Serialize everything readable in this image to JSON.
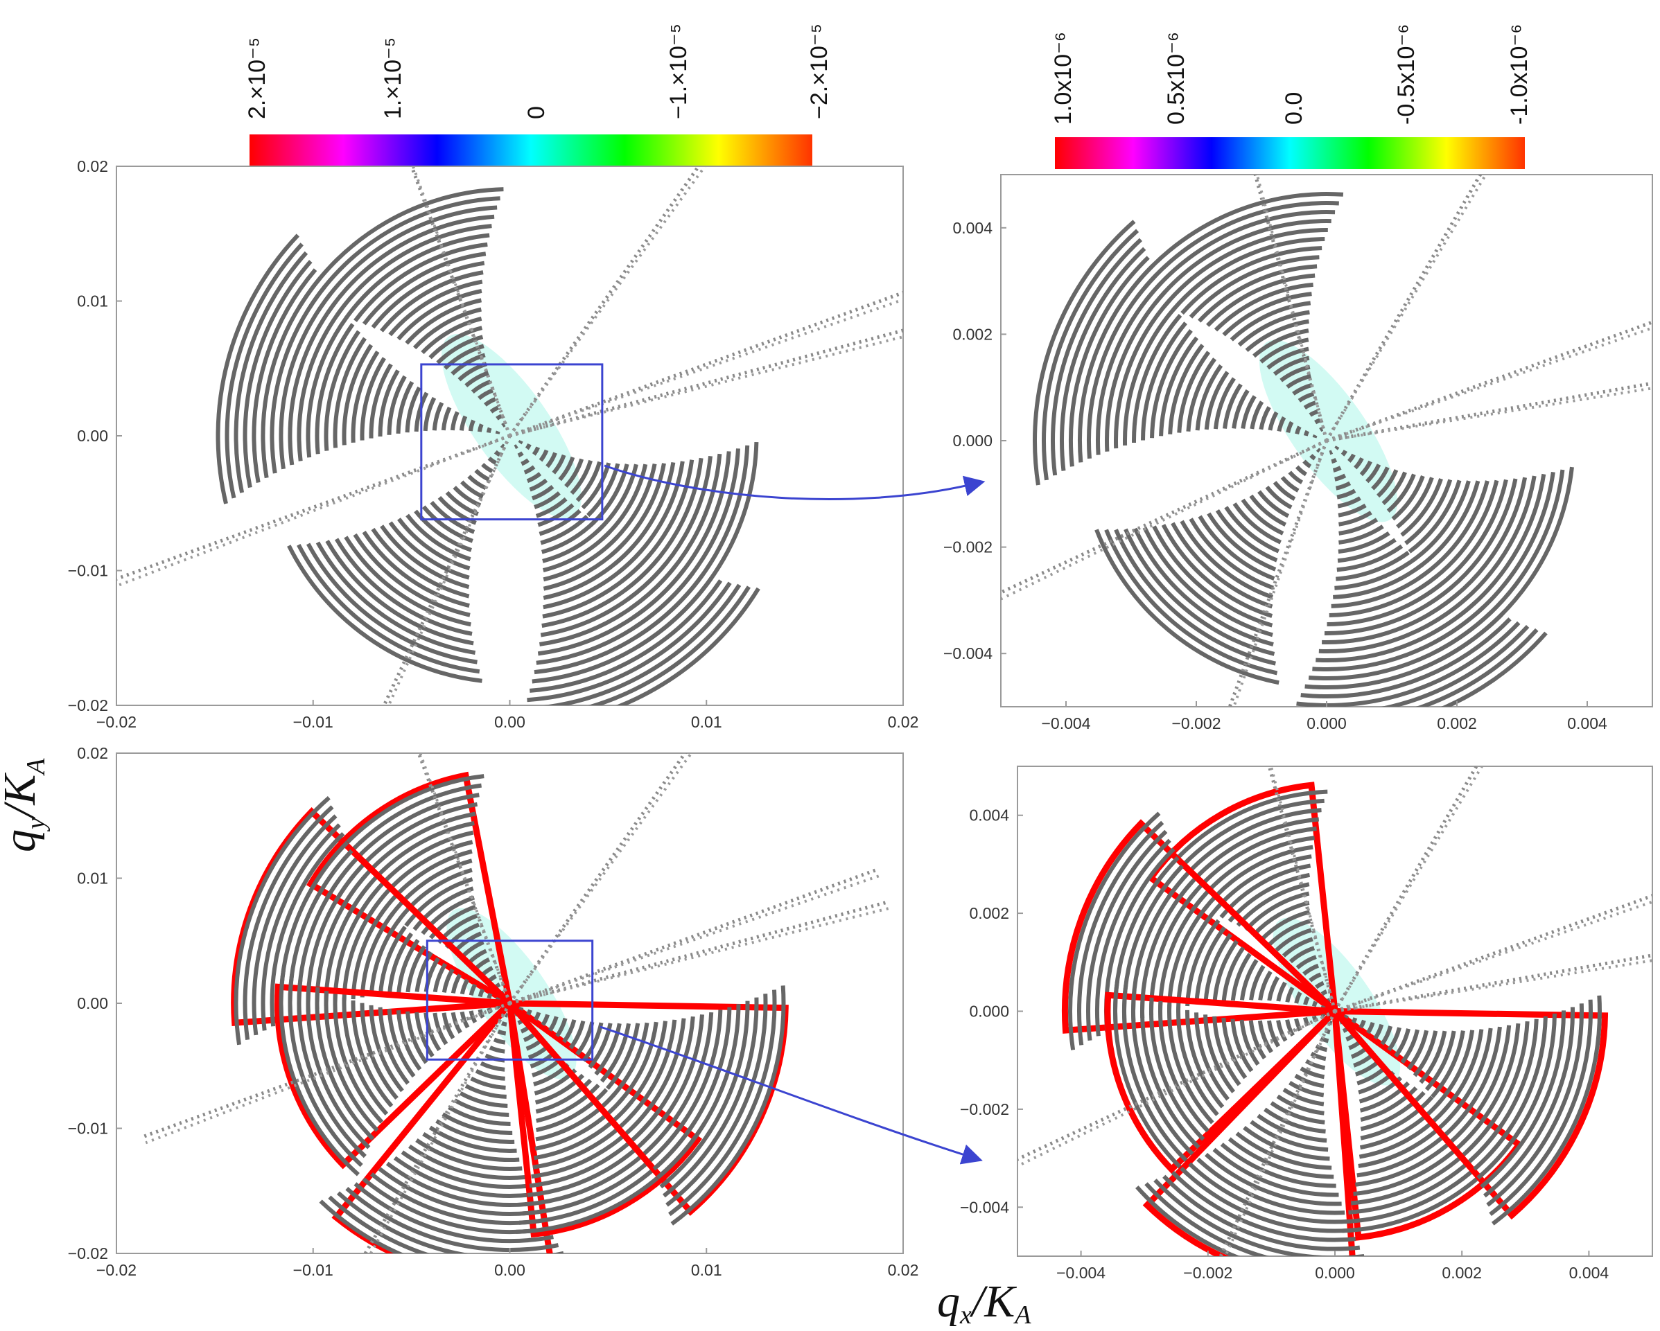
{
  "figure": {
    "xlabel": "q",
    "xlabel_sub": "x",
    "xlabel_den": "/K",
    "xlabel_den_sub": "A",
    "ylabel": "q",
    "ylabel_sub": "y",
    "ylabel_den": "/K",
    "ylabel_den_sub": "A"
  },
  "colorbars": [
    {
      "labels": [
        "2.×10⁻⁵",
        "1.×10⁻⁵",
        "0",
        "−1.×10⁻⁵",
        "−2.×10⁻⁵"
      ],
      "values": [
        2e-05,
        1e-05,
        0,
        -1e-05,
        -2e-05
      ],
      "colors": [
        "#ff0000",
        "#ff00ff",
        "#0000ff",
        "#00ffff",
        "#00ff00",
        "#ffff00",
        "#ff3300"
      ]
    },
    {
      "labels": [
        "1.0x10⁻⁶",
        "0.5x10⁻⁶",
        "0.0",
        "-0.5x10⁻⁶",
        "-1.0x10⁻⁶"
      ],
      "values": [
        1e-06,
        5e-07,
        0,
        -5e-07,
        -1e-06
      ],
      "colors": [
        "#ff0000",
        "#ff00ff",
        "#0000ff",
        "#00ffff",
        "#00ff00",
        "#ffff00",
        "#ff3300"
      ]
    }
  ],
  "chart_data": [
    {
      "id": "top-left",
      "type": "heatmap",
      "title": "",
      "xlim": [
        -0.02,
        0.02
      ],
      "ylim": [
        -0.02,
        0.02
      ],
      "xticks": [
        -0.02,
        -0.01,
        0.0,
        0.01,
        0.02
      ],
      "yticks": [
        -0.02,
        -0.01,
        0.0,
        0.01,
        0.02
      ],
      "xtick_labels": [
        "−0.02",
        "−0.01",
        "0.00",
        "0.01",
        "0.02"
      ],
      "ytick_labels": [
        "−0.02",
        "−0.01",
        "0.00",
        "0.01",
        "0.02"
      ],
      "zoom_box": {
        "x": [
          -0.0045,
          0.0047
        ],
        "y": [
          -0.0062,
          0.0053
        ]
      },
      "colorbar": 0,
      "edge_color": "",
      "lobe_angles": [
        120,
        165,
        235,
        300,
        330
      ],
      "line_angles": [
        55,
        20,
        15,
        200,
        245,
        110
      ]
    },
    {
      "id": "top-right",
      "type": "heatmap",
      "title": "",
      "xlim": [
        -0.005,
        0.005
      ],
      "ylim": [
        -0.005,
        0.005
      ],
      "xticks": [
        -0.004,
        -0.002,
        0.0,
        0.002,
        0.004
      ],
      "yticks": [
        -0.004,
        -0.002,
        0.0,
        0.002,
        0.004
      ],
      "xtick_labels": [
        "−0.004",
        "−0.002",
        "0.000",
        "0.002",
        "0.004"
      ],
      "ytick_labels": [
        "−0.004",
        "−0.002",
        "0.000",
        "0.002",
        "0.004"
      ],
      "colorbar": 1,
      "edge_color": "",
      "lobe_angles": [
        115,
        160,
        230,
        290,
        325
      ],
      "line_angles": [
        60,
        20,
        10,
        205,
        250,
        105
      ]
    },
    {
      "id": "bottom-left",
      "type": "heatmap",
      "title": "",
      "xlim": [
        -0.02,
        0.02
      ],
      "ylim": [
        -0.02,
        0.02
      ],
      "xticks": [
        -0.02,
        -0.01,
        0.0,
        0.01,
        0.02
      ],
      "yticks": [
        -0.02,
        -0.01,
        0.0,
        0.01,
        0.02
      ],
      "xtick_labels": [
        "−0.02",
        "−0.01",
        "0.00",
        "0.01",
        "0.02"
      ],
      "ytick_labels": [
        "−0.02",
        "−0.01",
        "0.00",
        "0.01",
        "0.02"
      ],
      "zoom_box": {
        "x": [
          -0.0042,
          0.0042
        ],
        "y": [
          -0.0045,
          0.005
        ]
      },
      "colorbar": 0,
      "edge_color": "#ff0000",
      "lobe_angles": [
        125,
        160,
        200,
        255,
        300,
        335
      ],
      "line_angles": [
        55,
        20,
        15,
        240,
        200,
        110
      ]
    },
    {
      "id": "bottom-right",
      "type": "heatmap",
      "title": "",
      "xlim": [
        -0.005,
        0.005
      ],
      "ylim": [
        -0.005,
        0.005
      ],
      "xticks": [
        -0.004,
        -0.002,
        0.0,
        0.002,
        0.004
      ],
      "yticks": [
        -0.004,
        -0.002,
        0.0,
        0.002,
        0.004
      ],
      "xtick_labels": [
        "−0.004",
        "−0.002",
        "0.000",
        "0.002",
        "0.004"
      ],
      "ytick_labels": [
        "−0.004",
        "−0.002",
        "0.000",
        "0.002",
        "0.004"
      ],
      "colorbar": 1,
      "edge_color": "#ff0000",
      "lobe_angles": [
        120,
        160,
        200,
        250,
        300,
        335
      ],
      "line_angles": [
        60,
        20,
        10,
        245,
        205,
        105
      ]
    }
  ]
}
